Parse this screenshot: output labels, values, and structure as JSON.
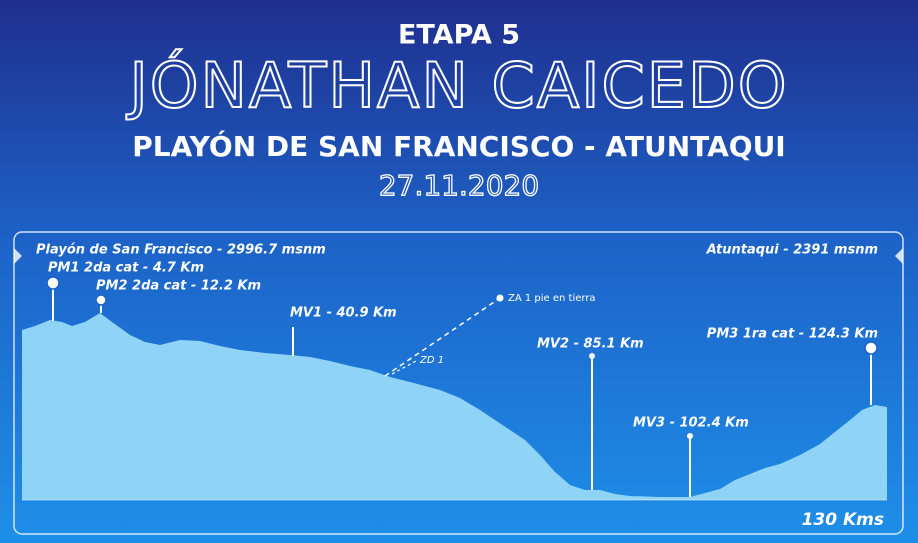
{
  "header": {
    "stage": "ETAPA 5",
    "rider": "JÓNATHAN CAICEDO",
    "route": "PLAYÓN DE SAN FRANCISCO - ATUNTAQUI",
    "date": "27.11.2020"
  },
  "profile": {
    "start": "Playón de San Francisco - 2996.7 msnm",
    "finish": "Atuntaqui - 2391 msnm",
    "distance": "130 Kms",
    "markers": [
      {
        "label": "PM1 2da cat - 4.7 Km"
      },
      {
        "label": "PM2 2da cat - 12.2 Km"
      },
      {
        "label": "MV1 - 40.9 Km"
      },
      {
        "label": "MV2 - 85.1 Km"
      },
      {
        "label": "MV3 - 102.4 Km"
      },
      {
        "label": "PM3 1ra cat - 124.3 Km"
      }
    ],
    "zones": {
      "feed": "ZA 1 pie en tierra",
      "waste": "ZD 1"
    }
  }
}
